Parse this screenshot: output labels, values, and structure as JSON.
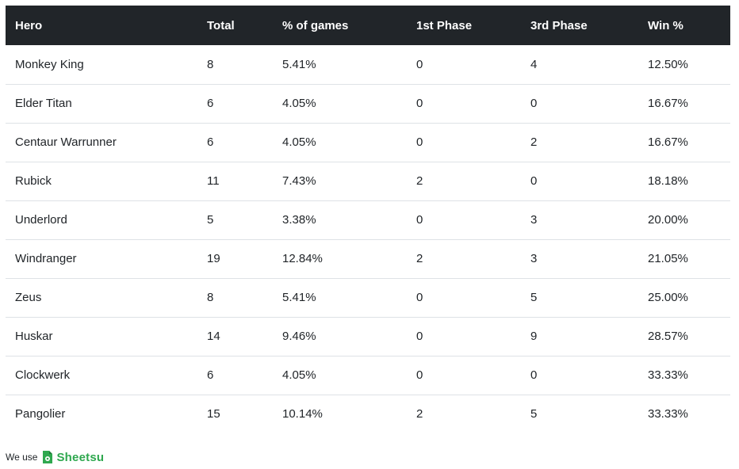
{
  "table": {
    "headers": [
      "Hero",
      "Total",
      "% of games",
      "1st Phase",
      "3rd Phase",
      "Win %"
    ],
    "rows": [
      [
        "Monkey King",
        "8",
        "5.41%",
        "0",
        "4",
        "12.50%"
      ],
      [
        "Elder Titan",
        "6",
        "4.05%",
        "0",
        "0",
        "16.67%"
      ],
      [
        "Centaur Warrunner",
        "6",
        "4.05%",
        "0",
        "2",
        "16.67%"
      ],
      [
        "Rubick",
        "11",
        "7.43%",
        "2",
        "0",
        "18.18%"
      ],
      [
        "Underlord",
        "5",
        "3.38%",
        "0",
        "3",
        "20.00%"
      ],
      [
        "Windranger",
        "19",
        "12.84%",
        "2",
        "3",
        "21.05%"
      ],
      [
        "Zeus",
        "8",
        "5.41%",
        "0",
        "5",
        "25.00%"
      ],
      [
        "Huskar",
        "14",
        "9.46%",
        "0",
        "9",
        "28.57%"
      ],
      [
        "Clockwerk",
        "6",
        "4.05%",
        "0",
        "0",
        "33.33%"
      ],
      [
        "Pangolier",
        "15",
        "10.14%",
        "2",
        "5",
        "33.33%"
      ]
    ]
  },
  "footer": {
    "prefix": "We use",
    "brand": "Sheetsu",
    "brand_icon": "sheetsu-logo-icon",
    "brand_color": "#2fa84f"
  },
  "colors": {
    "header_bg": "#212529",
    "header_text": "#ffffff",
    "row_border": "#dee2e6"
  }
}
